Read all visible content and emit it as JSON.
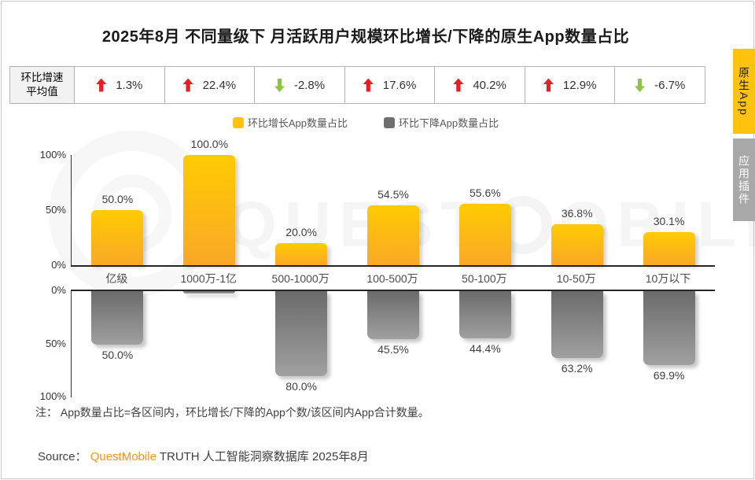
{
  "page": {
    "title": "2025年8月 不同量级下 月活跃用户规模环比增长/下降的原生App数量占比"
  },
  "stats_row": {
    "header": "环比增速\n平均值",
    "cells": [
      {
        "dir": "up",
        "value": "1.3%"
      },
      {
        "dir": "up",
        "value": "22.4%"
      },
      {
        "dir": "down",
        "value": "-2.8%"
      },
      {
        "dir": "up",
        "value": "17.6%"
      },
      {
        "dir": "up",
        "value": "40.2%"
      },
      {
        "dir": "up",
        "value": "12.9%"
      },
      {
        "dir": "down",
        "value": "-6.7%"
      }
    ]
  },
  "legend": {
    "items": [
      {
        "label": "环比增长App数量占比",
        "color": "#FFC20E"
      },
      {
        "label": "环比下降App数量占比",
        "color": "#6E6E6E"
      }
    ]
  },
  "chart_data": {
    "type": "bar",
    "title": "2025年8月 不同量级下 月活跃用户规模环比增长/下降的原生App数量占比",
    "categories": [
      "亿级",
      "1000万-1亿",
      "500-1000万",
      "100-500万",
      "50-100万",
      "10-50万",
      "10万以下"
    ],
    "series": [
      {
        "name": "环比增长App数量占比",
        "direction": "up",
        "color": "#FFC20E",
        "values": [
          50.0,
          100.0,
          20.0,
          54.5,
          55.6,
          36.8,
          30.1
        ],
        "labels": [
          "50.0%",
          "100.0%",
          "20.0%",
          "54.5%",
          "55.6%",
          "36.8%",
          "30.1%"
        ]
      },
      {
        "name": "环比下降App数量占比",
        "direction": "down-inverted",
        "color": "#6E6E6E",
        "values": [
          50.0,
          0.0,
          80.0,
          45.5,
          44.4,
          63.2,
          69.9
        ],
        "labels": [
          "50.0%",
          "",
          "80.0%",
          "45.5%",
          "44.4%",
          "63.2%",
          "69.9%"
        ]
      }
    ],
    "avg_mom_growth": {
      "label": "环比增速平均值",
      "values": [
        1.3,
        22.4,
        -2.8,
        17.6,
        40.2,
        12.9,
        -6.7
      ],
      "display": [
        "1.3%",
        "22.4%",
        "-2.8%",
        "17.6%",
        "40.2%",
        "12.9%",
        "-6.7%"
      ]
    },
    "ylim": [
      0,
      100
    ],
    "upper_ticks": [
      "100%",
      "50%",
      "0%"
    ],
    "lower_ticks": [
      "0%",
      "50%",
      "100%"
    ],
    "legend_position": "top-center",
    "grid": false
  },
  "footnote": "注： App数量占比=各区间内，环比增长/下降的App个数/该区间内App合计数量。",
  "source": {
    "label": "Source：",
    "brand": "QuestMobile",
    "suffix": " TRUTH 人工智能洞察数据库 2025年8月"
  },
  "side_tabs": [
    {
      "id": "native-app",
      "label": "原生App",
      "active": true
    },
    {
      "id": "app-plugin",
      "label": "应用插件",
      "active": false
    }
  ],
  "watermark": {
    "left": "QUEST",
    "right": "OBILE"
  },
  "colors": {
    "accent_yellow": "#FFC20E",
    "bar_gray": "#6E6E6E",
    "up_red": "#EC1C24",
    "down_green": "#8CC63E",
    "brand_orange": "#F7941E",
    "tab_inactive_gray": "#A8A8A8"
  }
}
